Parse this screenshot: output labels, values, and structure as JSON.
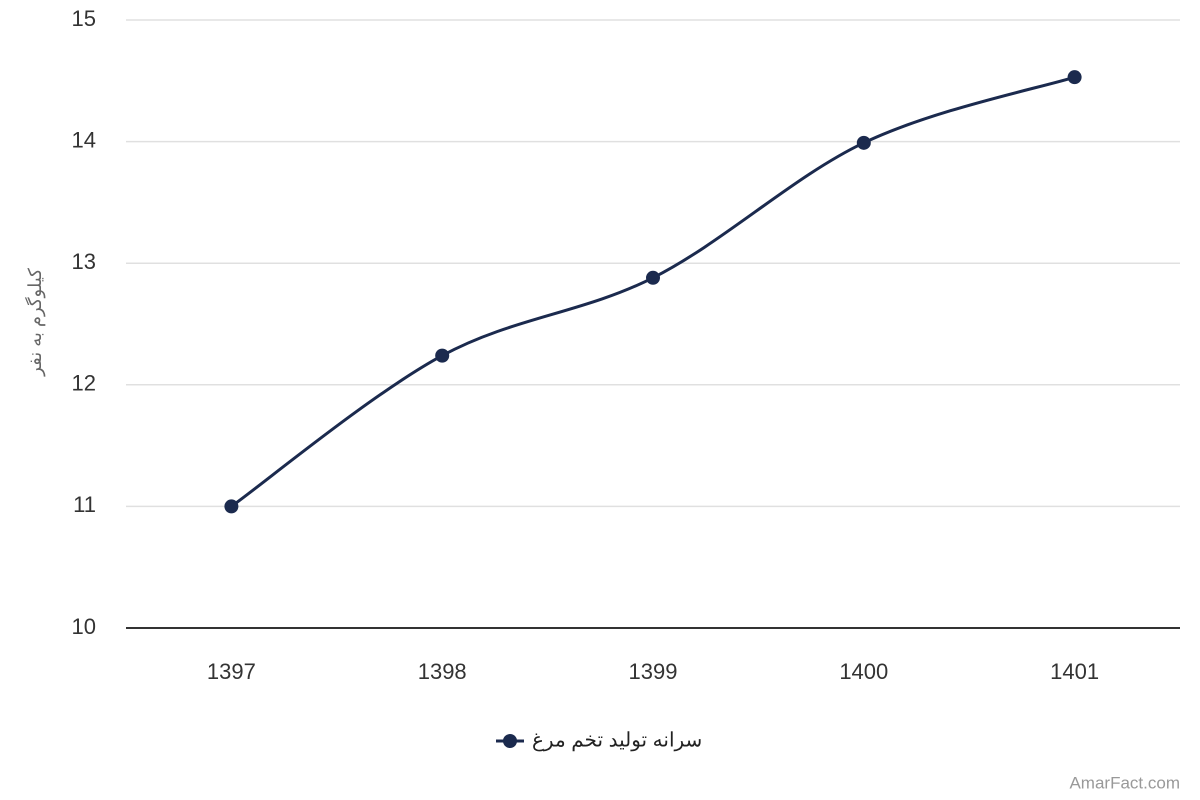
{
  "chart_data": {
    "type": "line",
    "y_label": "کیلوگرم به نفر",
    "categories": [
      "1397",
      "1398",
      "1399",
      "1400",
      "1401"
    ],
    "series": [
      {
        "name": "سرانه تولید تخم مرغ",
        "color": "#1b2a4e",
        "values": [
          11.0,
          12.24,
          12.88,
          13.99,
          14.53
        ]
      }
    ],
    "ylim": [
      10,
      15
    ],
    "yticks": [
      10,
      11,
      12,
      13,
      14,
      15
    ],
    "grid": true,
    "smooth": true,
    "legend": "bottom",
    "credit": "AmarFact.com"
  }
}
